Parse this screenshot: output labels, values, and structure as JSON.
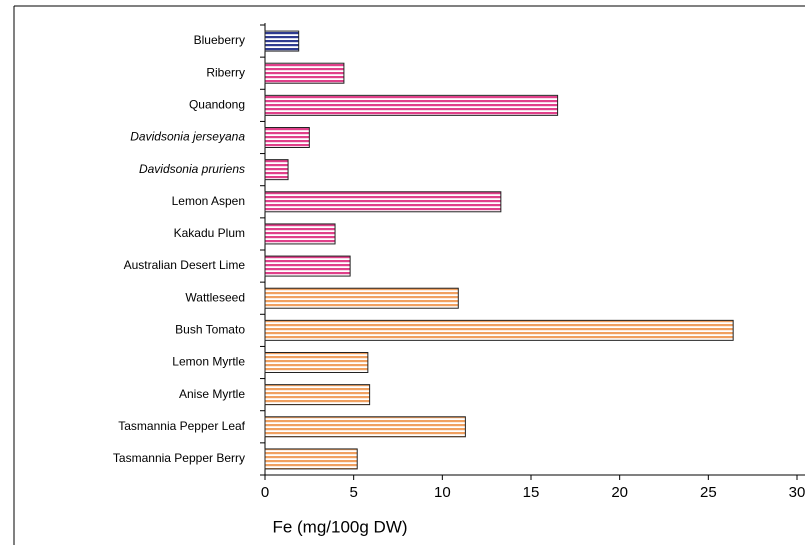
{
  "chart_data": {
    "type": "hbar",
    "x_label": "Fe (mg/100g DW)",
    "categories": [
      "Blueberry",
      "Riberry",
      "Quandong",
      "Davidsonia jerseyana",
      "Davidsonia pruriens",
      "Lemon Aspen",
      "Kakadu Plum",
      "Australian Desert Lime",
      "Wattleseed",
      "Bush Tomato",
      "Lemon Myrtle",
      "Anise Myrtle",
      "Tasmannia Pepper Leaf",
      "Tasmannia Pepper Berry"
    ],
    "label_styles": [
      "normal",
      "normal",
      "normal",
      "italic",
      "italic",
      "normal",
      "normal",
      "normal",
      "normal",
      "normal",
      "normal",
      "normal",
      "normal",
      "normal"
    ],
    "values": [
      1.9,
      4.45,
      16.5,
      2.5,
      1.3,
      13.3,
      3.95,
      4.8,
      10.9,
      26.4,
      5.8,
      5.9,
      11.3,
      5.2
    ],
    "colors": [
      "#2f3a8f",
      "#e0408a",
      "#e0408a",
      "#e0408a",
      "#e0408a",
      "#e0408a",
      "#e0408a",
      "#e0408a",
      "#f0a060",
      "#f0a060",
      "#f0a060",
      "#f0a060",
      "#f0a060",
      "#f0a060"
    ],
    "xlim": [
      0,
      30
    ],
    "xticks": [
      0,
      5,
      10,
      15,
      20,
      25,
      30
    ]
  }
}
